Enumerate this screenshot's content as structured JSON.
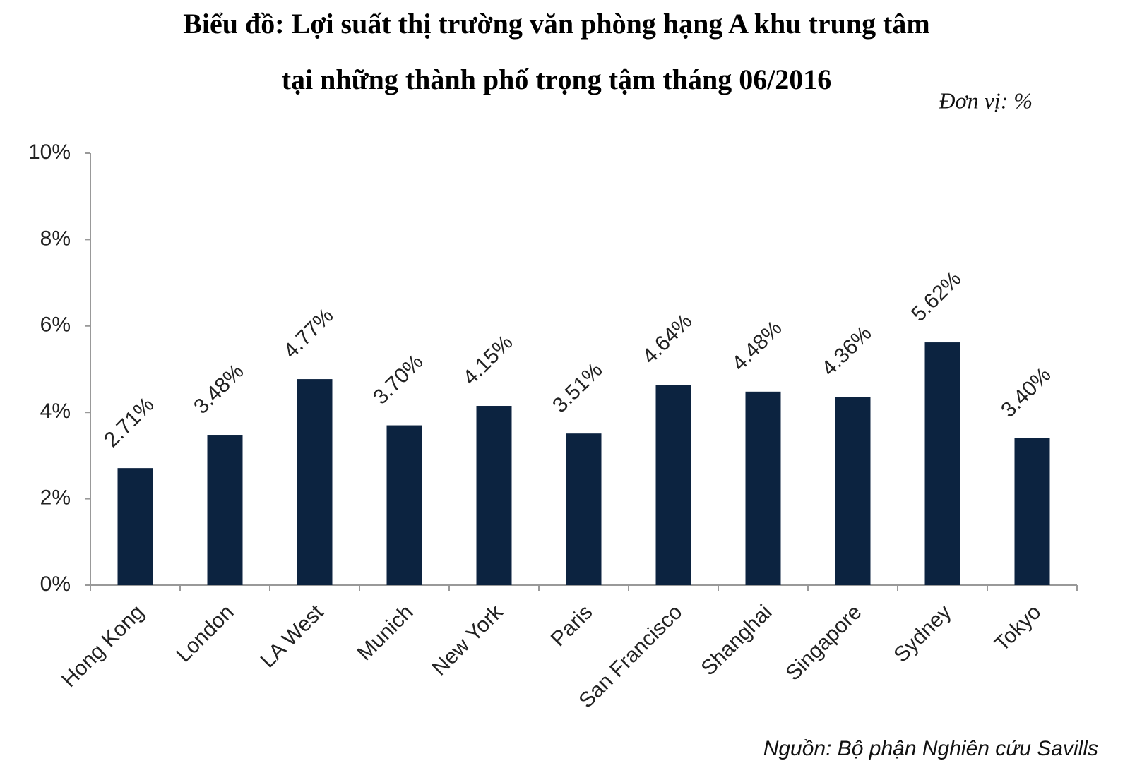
{
  "chart_data": {
    "type": "bar",
    "title": [
      "Biểu đồ: Lợi suất thị trường văn phòng hạng A khu trung tâm",
      "tại những thành phố trọng tậm tháng 06/2016"
    ],
    "unit_note": "Đơn vị: %",
    "source": "Nguồn: Bộ phận Nghiên cứu Savills",
    "categories": [
      "Hong Kong",
      "London",
      "LA West",
      "Munich",
      "New York",
      "Paris",
      "San Francisco",
      "Shanghai",
      "Singapore",
      "Sydney",
      "Tokyo"
    ],
    "values": [
      2.71,
      3.48,
      4.77,
      3.7,
      4.15,
      3.51,
      4.64,
      4.48,
      4.36,
      5.62,
      3.4
    ],
    "value_labels": [
      "2.71%",
      "3.48%",
      "4.77%",
      "3.70%",
      "4.15%",
      "3.51%",
      "4.64%",
      "4.48%",
      "4.36%",
      "5.62%",
      "3.40%"
    ],
    "color": "#0c2340",
    "ylim": [
      0,
      10
    ],
    "yticks": [
      {
        "value": 0,
        "label": "0%"
      },
      {
        "value": 2,
        "label": "2%"
      },
      {
        "value": 4,
        "label": "4%"
      },
      {
        "value": 6,
        "label": "6%"
      },
      {
        "value": 8,
        "label": "8%"
      },
      {
        "value": 10,
        "label": "10%"
      }
    ],
    "grid": false
  }
}
